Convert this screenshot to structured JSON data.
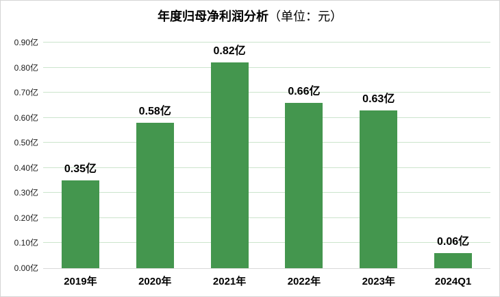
{
  "title": {
    "main": "年度归母净利润分析",
    "unit": "（单位：元）"
  },
  "chart_data": {
    "type": "bar",
    "title": "年度归母净利润分析（单位：元）",
    "categories": [
      "2019年",
      "2020年",
      "2021年",
      "2022年",
      "2023年",
      "2024Q1"
    ],
    "values": [
      0.35,
      0.58,
      0.82,
      0.66,
      0.63,
      0.06
    ],
    "value_labels": [
      "0.35亿",
      "0.58亿",
      "0.82亿",
      "0.66亿",
      "0.63亿",
      "0.06亿"
    ],
    "y_ticks": [
      "0.00亿",
      "0.10亿",
      "0.20亿",
      "0.30亿",
      "0.40亿",
      "0.50亿",
      "0.60亿",
      "0.70亿",
      "0.80亿",
      "0.90亿"
    ],
    "y_tick_values": [
      0.0,
      0.1,
      0.2,
      0.3,
      0.4,
      0.5,
      0.6,
      0.7,
      0.8,
      0.9
    ],
    "ylim": [
      0,
      0.9
    ],
    "grid": true,
    "legend": "none",
    "colors": {
      "bar": "#44964e",
      "gridline": "#cbe4cc",
      "baseline": "#d9d9d9",
      "text": "#000000"
    }
  }
}
